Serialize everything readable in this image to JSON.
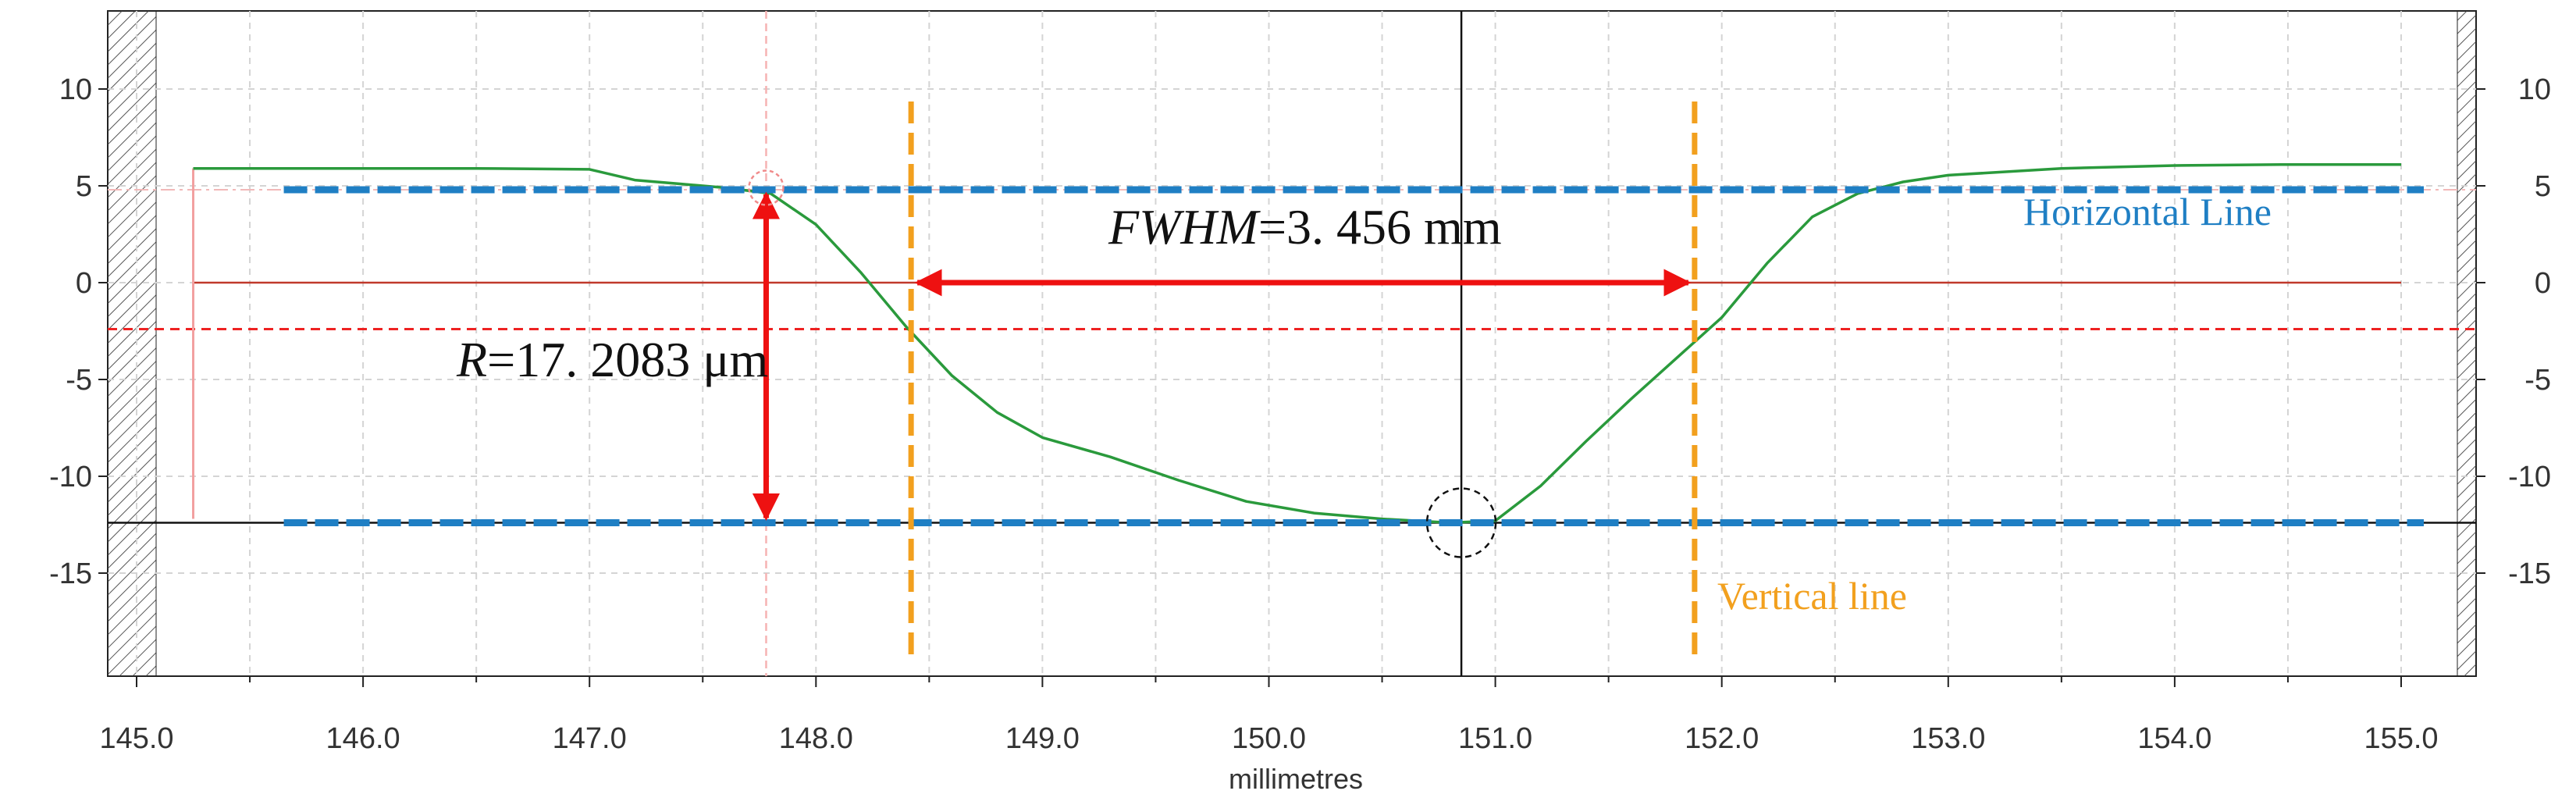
{
  "chart_data": {
    "type": "line",
    "xlabel": "millimetres",
    "xlim": [
      145.0,
      155.3
    ],
    "ylim": [
      -19.5,
      13.5
    ],
    "x_ticks": [
      145.0,
      146.0,
      147.0,
      148.0,
      149.0,
      150.0,
      151.0,
      152.0,
      153.0,
      154.0,
      155.0
    ],
    "x_tick_labels": [
      "145.0",
      "146.0",
      "147.0",
      "148.0",
      "149.0",
      "150.0",
      "151.0",
      "152.0",
      "153.0",
      "154.0",
      "155.0"
    ],
    "y_ticks": [
      10,
      5,
      0,
      -5,
      -10,
      -15
    ],
    "y_tick_labels": [
      "10",
      "5",
      "0",
      "-5",
      "-10",
      "-15"
    ],
    "grid": true,
    "series": [
      {
        "color": "#2a9a3c",
        "x": [
          145.25,
          145.7,
          146.0,
          146.5,
          147.0,
          147.2,
          147.4,
          147.6,
          147.8,
          148.0,
          148.2,
          148.4,
          148.6,
          148.8,
          149.0,
          149.3,
          149.6,
          149.9,
          150.2,
          150.5,
          150.8,
          151.0,
          151.2,
          151.4,
          151.6,
          151.8,
          152.0,
          152.2,
          152.4,
          152.6,
          152.8,
          153.0,
          153.5,
          154.0,
          154.5,
          155.0
        ],
        "y": [
          5.9,
          5.9,
          5.9,
          5.9,
          5.85,
          5.3,
          5.1,
          4.9,
          4.6,
          3.0,
          0.5,
          -2.3,
          -4.8,
          -6.7,
          -8.0,
          -9.0,
          -10.2,
          -11.3,
          -11.9,
          -12.2,
          -12.4,
          -12.3,
          -10.5,
          -8.2,
          -6.0,
          -3.9,
          -1.8,
          1.0,
          3.4,
          4.6,
          5.2,
          5.55,
          5.9,
          6.05,
          6.1,
          6.1
        ]
      }
    ],
    "reference_lines": {
      "horizontal_blue_y": [
        4.8,
        -12.4
      ],
      "horizontal_red_dashed_y": -2.4,
      "zero_line_y": 0,
      "vertical_orange_x": [
        148.42,
        151.88
      ],
      "crosshair": {
        "x": 150.85,
        "y": -12.4
      }
    },
    "annotations": {
      "fwhm": {
        "italic": "FWHM",
        "text": "=3. 456 mm"
      },
      "r": {
        "italic": "R",
        "text": "=17. 2083 μm"
      },
      "horizontal_line_label": "Horizontal Line",
      "vertical_line_label": "Vertical line"
    }
  },
  "colors": {
    "curve": "#2a9a3c",
    "blue_line": "#1f7fc4",
    "orange_line": "#f2a01e",
    "red_arrow": "#ee1111",
    "red_dashed": "#ee2222",
    "zero_line": "#c0392b",
    "grid": "#d4d4d4"
  }
}
